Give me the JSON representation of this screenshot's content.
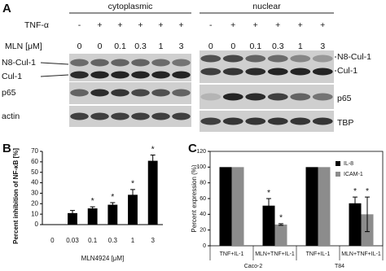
{
  "panel_a": {
    "label": "A",
    "tnf_label": "TNF-α",
    "mln_label": "MLN [μM]",
    "compartments": [
      {
        "title": "cytoplasmic",
        "tnf": [
          "-",
          "+",
          "+",
          "+",
          "+",
          "+"
        ],
        "mln": [
          "0",
          "0",
          "0.1",
          "0.3",
          "1",
          "3"
        ],
        "bands": [
          "N8-Cul-1",
          "Cul-1",
          "p65",
          "actin"
        ]
      },
      {
        "title": "nuclear",
        "tnf": [
          "-",
          "+",
          "+",
          "+",
          "+",
          "+"
        ],
        "mln": [
          "0",
          "0",
          "0.1",
          "0.3",
          "1",
          "3"
        ],
        "bands": [
          "N8-Cul-1",
          "Cul-1",
          "p65",
          "TBP"
        ]
      }
    ]
  },
  "chart_data": [
    {
      "type": "bar",
      "panel": "B",
      "y_label": "Percent inhibition of NF-κB [%]",
      "x_label": "MLN4924 [μM]",
      "categories": [
        "0",
        "0.03",
        "0.1",
        "0.3",
        "1",
        "3"
      ],
      "values": [
        0,
        11,
        15.5,
        19,
        28.5,
        61
      ],
      "errors": [
        0,
        2.5,
        1.5,
        2,
        5,
        5.5
      ],
      "significance": [
        null,
        null,
        "*",
        "*",
        "*",
        "*"
      ],
      "color": "#000000",
      "ylim": [
        0,
        70
      ],
      "yticks": [
        0,
        10,
        20,
        30,
        40,
        50,
        60,
        70
      ]
    },
    {
      "type": "grouped_bar",
      "panel": "C",
      "y_label": "Percent expression (%)",
      "categories": [
        "TNF+IL-1",
        "MLN+TNF+IL-1",
        "TNF+IL-1",
        "MLN+TNF+IL-1"
      ],
      "groups": [
        "Caco-2",
        "T84"
      ],
      "series": [
        {
          "name": "IL-8",
          "color": "#000000",
          "values": [
            100,
            51,
            100,
            54
          ],
          "errors": [
            0,
            9,
            0,
            8
          ],
          "significance": [
            null,
            "*",
            null,
            "*"
          ]
        },
        {
          "name": "ICAM-1",
          "color": "#8c8c8c",
          "values": [
            100,
            27,
            100,
            40
          ],
          "errors": [
            0,
            1,
            0,
            22
          ],
          "significance": [
            null,
            "*",
            null,
            "*"
          ]
        }
      ],
      "ylim": [
        0,
        120
      ],
      "yticks": [
        0,
        20,
        40,
        60,
        80,
        100,
        120
      ],
      "legend": "upper right"
    }
  ]
}
